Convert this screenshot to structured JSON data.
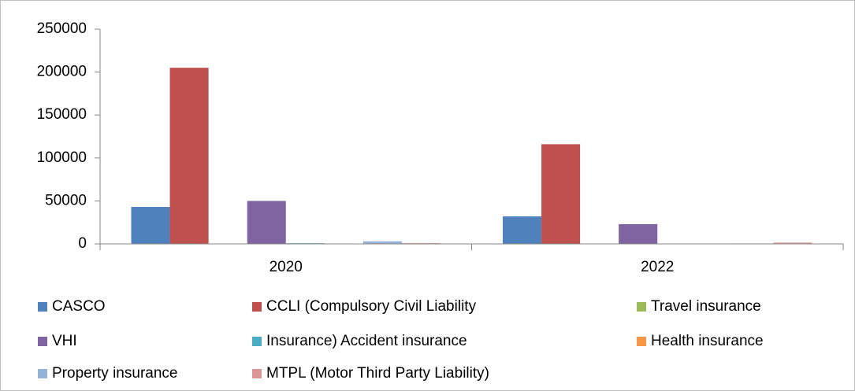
{
  "chart_data": {
    "type": "bar",
    "categories": [
      "2020",
      "2022"
    ],
    "series": [
      {
        "name": "CASCO",
        "color": "#4f81bd",
        "values": [
          43000,
          32000
        ]
      },
      {
        "name": "CCLI (Compulsory Civil Liability",
        "color": "#c0504d",
        "values": [
          205000,
          116000
        ]
      },
      {
        "name": "Travel insurance",
        "color": "#9bbb59",
        "values": [
          200,
          100
        ]
      },
      {
        "name": "VHI",
        "color": "#8064a2",
        "values": [
          50000,
          23000
        ]
      },
      {
        "name": "Insurance) Accident insurance",
        "color": "#4bacc6",
        "values": [
          800,
          300
        ]
      },
      {
        "name": "Health insurance",
        "color": "#f79646",
        "values": [
          200,
          100
        ]
      },
      {
        "name": "Property insurance",
        "color": "#95b3d7",
        "values": [
          3000,
          500
        ]
      },
      {
        "name": "MTPL (Motor Third Party Liability)",
        "color": "#d99694",
        "values": [
          1000,
          1500
        ]
      }
    ],
    "ylim": [
      0,
      250000
    ],
    "yticks": [
      0,
      50000,
      100000,
      150000,
      200000,
      250000
    ],
    "grid": false
  }
}
